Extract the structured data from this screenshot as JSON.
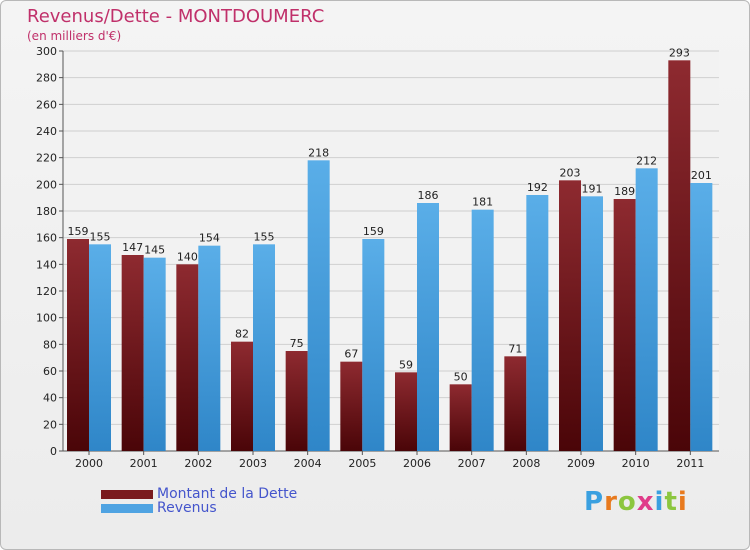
{
  "chart_data": {
    "type": "bar",
    "title": "Revenus/Dette - MONTDOUMERC",
    "subtitle": "(en milliers d'€)",
    "categories": [
      "2000",
      "2001",
      "2002",
      "2003",
      "2004",
      "2005",
      "2006",
      "2007",
      "2008",
      "2009",
      "2010",
      "2011"
    ],
    "series": [
      {
        "name": "Montant de la Dette",
        "color": "#7a1a1e",
        "values": [
          159,
          147,
          140,
          82,
          75,
          67,
          59,
          50,
          71,
          203,
          189,
          293
        ]
      },
      {
        "name": "Revenus",
        "color": "#4fa3e2",
        "values": [
          155,
          145,
          154,
          155,
          218,
          159,
          186,
          181,
          192,
          191,
          212,
          201
        ]
      }
    ],
    "ylim": [
      0,
      300
    ],
    "yticks": [
      0,
      20,
      40,
      60,
      80,
      100,
      120,
      140,
      160,
      180,
      200,
      220,
      240,
      260,
      280,
      300
    ],
    "grid": true,
    "legend_position": "bottom-left"
  },
  "branding": {
    "logo_letters": [
      "P",
      "r",
      "o",
      "x",
      "i",
      "t",
      "i"
    ],
    "logo_colors": [
      "#3aa0e0",
      "#e87a1e",
      "#8cc63f",
      "#e03c8a",
      "#3aa0e0",
      "#8cc63f",
      "#e87a1e"
    ]
  }
}
